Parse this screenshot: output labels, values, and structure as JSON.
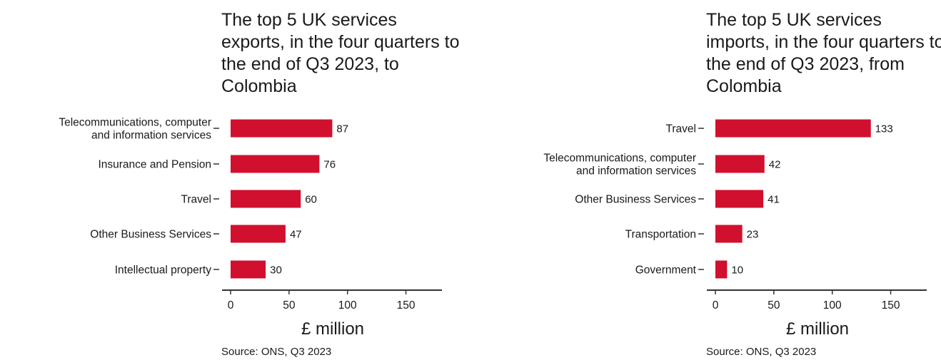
{
  "chart_data": [
    {
      "type": "bar",
      "orientation": "horizontal",
      "title": "The top 5 UK services exports, in the four quarters to the end of Q3 2023, to Colombia",
      "categories": [
        "Telecommunications, computer and information services",
        "Insurance and Pension",
        "Travel",
        "Other Business Services",
        "Intellectual property"
      ],
      "category_lines": [
        [
          "Telecommunications, computer",
          "and information services"
        ],
        [
          "Insurance and Pension"
        ],
        [
          "Travel"
        ],
        [
          "Other Business Services"
        ],
        [
          "Intellectual property"
        ]
      ],
      "values": [
        87,
        76,
        60,
        47,
        30
      ],
      "data_labels": [
        "87",
        "76",
        "60",
        "47",
        "30"
      ],
      "xlabel": "£ million",
      "ylabel": "",
      "xlim": [
        0,
        180
      ],
      "x_ticks": [
        0,
        50,
        100,
        150
      ],
      "x_tick_labels": [
        "0",
        "50",
        "100",
        "150"
      ],
      "grid": false,
      "legend": "none",
      "bar_color": "#d0102e",
      "source": "Source: ONS, Q3 2023"
    },
    {
      "type": "bar",
      "orientation": "horizontal",
      "title": "The top 5 UK services imports, in the four quarters to the end of Q3 2023, from Colombia",
      "categories": [
        "Travel",
        "Telecommunications, computer and information services",
        "Other Business Services",
        "Transportation",
        "Government"
      ],
      "category_lines": [
        [
          "Travel"
        ],
        [
          "Telecommunications, computer",
          "and information services"
        ],
        [
          "Other Business Services"
        ],
        [
          "Transportation"
        ],
        [
          "Government"
        ]
      ],
      "values": [
        133,
        42,
        41,
        23,
        10
      ],
      "data_labels": [
        "133",
        "42",
        "41",
        "23",
        "10"
      ],
      "xlabel": "£ million",
      "ylabel": "",
      "xlim": [
        0,
        180
      ],
      "x_ticks": [
        0,
        50,
        100,
        150
      ],
      "x_tick_labels": [
        "0",
        "50",
        "100",
        "150"
      ],
      "grid": false,
      "legend": "none",
      "bar_color": "#d0102e",
      "source": "Source: ONS, Q3 2023"
    }
  ]
}
